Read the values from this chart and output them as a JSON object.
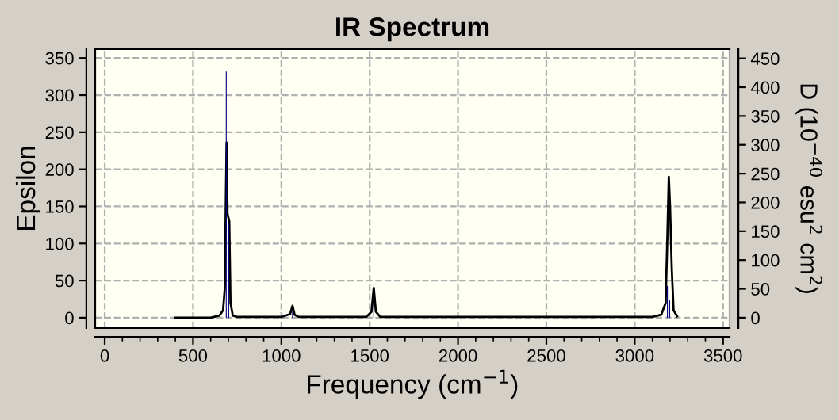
{
  "chart_data": {
    "type": "line",
    "title": "IR Spectrum",
    "xlabel": "Frequency (cm$^{−1}$)",
    "ylabel": "Epsilon",
    "y2label": "D (10$^{−40}$ esu$^{2}$ cm$^{2}$)",
    "xlim": [
      -54,
      3537
    ],
    "xticks": [
      0,
      500,
      1000,
      1500,
      2000,
      2500,
      3000,
      3500
    ],
    "ylim": [
      -14,
      362
    ],
    "yticks": [
      0,
      50,
      100,
      150,
      200,
      250,
      300,
      350
    ],
    "y2lim": [
      -18,
      466
    ],
    "y2ticks": [
      0,
      50,
      100,
      150,
      200,
      250,
      300,
      350,
      400,
      450
    ],
    "grid": true,
    "legend": false,
    "series": [
      {
        "type": "bar",
        "axis": "y2",
        "color": "#000080",
        "x": [
          688,
          702,
          1063,
          1523,
          3185,
          3198
        ],
        "values": [
          427,
          165,
          12,
          25,
          55,
          30
        ]
      },
      {
        "color": "#000000",
        "x": [
          400,
          600,
          650,
          670,
          680,
          685,
          690,
          695,
          705,
          712,
          725,
          750,
          1000,
          1050,
          1063,
          1075,
          1100,
          1480,
          1510,
          1523,
          1535,
          1560,
          3100,
          3150,
          3175,
          3185,
          3193,
          3200,
          3210,
          3220,
          3240
        ],
        "values": [
          0,
          0,
          3,
          10,
          40,
          145,
          236,
          140,
          130,
          20,
          3,
          1,
          1,
          5,
          16,
          4,
          1,
          1,
          8,
          40,
          8,
          1,
          1,
          4,
          20,
          110,
          190,
          150,
          65,
          10,
          2
        ]
      }
    ]
  }
}
